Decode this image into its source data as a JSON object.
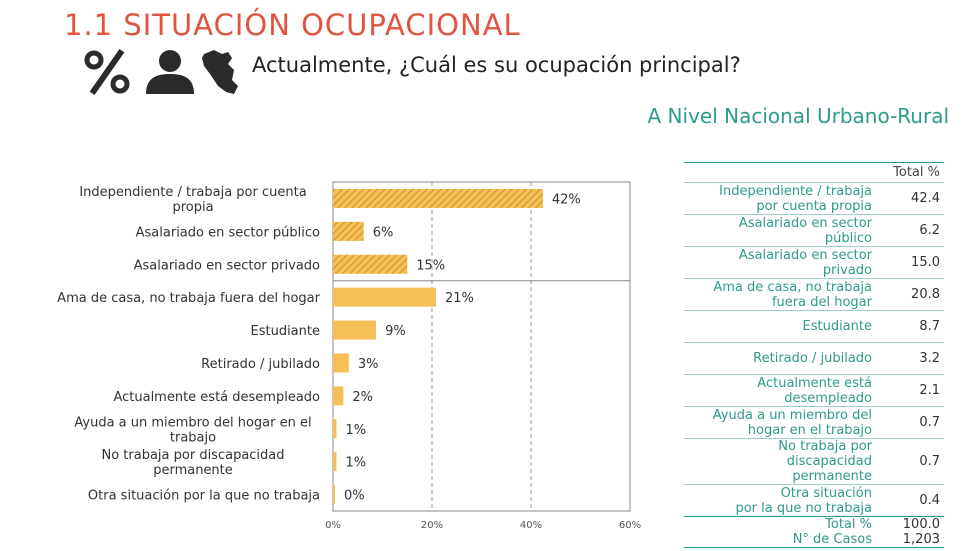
{
  "title": "1.1 SITUACIÓN OCUPACIONAL",
  "question": "Actualmente, ¿Cuál es su ocupación principal?",
  "subtitle": "A Nivel Nacional Urbano-Rural",
  "icons": [
    "percent-icon",
    "person-icon",
    "peru-map-icon"
  ],
  "colors": {
    "title": "#e2543f",
    "teal": "#2f9a8a",
    "bar": "#f5c057",
    "hatch": "#c8962a"
  },
  "chart_data": {
    "type": "bar",
    "orientation": "horizontal",
    "categories": [
      "Independiente / trabaja por cuenta propia",
      "Asalariado en sector público",
      "Asalariado en sector privado",
      "Ama de casa, no trabaja fuera del hogar",
      "Estudiante",
      "Retirado / jubilado",
      "Actualmente está desempleado",
      "Ayuda a un miembro del hogar en el trabajo",
      "No trabaja por discapacidad permanente",
      "Otra situación por la que no trabaja"
    ],
    "category_lines": [
      [
        "Independiente / trabaja por cuenta",
        "propia"
      ],
      [
        "Asalariado en sector público"
      ],
      [
        "Asalariado en sector privado"
      ],
      [
        "Ama de casa, no trabaja fuera del hogar"
      ],
      [
        "Estudiante"
      ],
      [
        "Retirado / jubilado"
      ],
      [
        "Actualmente está desempleado"
      ],
      [
        "Ayuda a un miembro del hogar en el",
        "trabajo"
      ],
      [
        "No trabaja por discapacidad",
        "permanente"
      ],
      [
        "Otra situación por la que no trabaja"
      ]
    ],
    "values": [
      42.4,
      6.2,
      15.0,
      20.8,
      8.7,
      3.2,
      2.1,
      0.7,
      0.7,
      0.4
    ],
    "data_labels": [
      "42%",
      "6%",
      "15%",
      "21%",
      "9%",
      "3%",
      "2%",
      "1%",
      "1%",
      "0%"
    ],
    "hatched": [
      true,
      true,
      true,
      false,
      false,
      false,
      false,
      false,
      false,
      false
    ],
    "xlim": [
      0,
      60
    ],
    "xticks": [
      0,
      20,
      40,
      60
    ],
    "xtick_labels": [
      "0%",
      "20%",
      "40%",
      "60%"
    ],
    "grid": "vertical dashed"
  },
  "table": {
    "header": "Total %",
    "rows": [
      {
        "label": [
          "Independiente / trabaja",
          "por cuenta propia"
        ],
        "value": "42.4"
      },
      {
        "label": [
          "Asalariado en sector",
          "público"
        ],
        "value": "6.2"
      },
      {
        "label": [
          "Asalariado en sector",
          "privado"
        ],
        "value": "15.0"
      },
      {
        "label": [
          "Ama de casa, no trabaja",
          "fuera del hogar"
        ],
        "value": "20.8"
      },
      {
        "label": [
          "Estudiante"
        ],
        "value": "8.7"
      },
      {
        "label": [
          "Retirado / jubilado"
        ],
        "value": "3.2"
      },
      {
        "label": [
          "Actualmente está",
          "desempleado"
        ],
        "value": "2.1"
      },
      {
        "label": [
          "Ayuda a un miembro del",
          "hogar en el trabajo"
        ],
        "value": "0.7"
      },
      {
        "label": [
          "No trabaja por",
          "discapacidad",
          "permanente"
        ],
        "value": "0.7"
      },
      {
        "label": [
          "Otra situación",
          "por la que no trabaja"
        ],
        "value": "0.4"
      }
    ],
    "total_label": "Total %",
    "total_value": "100.0",
    "cases_label": "N° de Casos",
    "cases_value": "1,203"
  }
}
